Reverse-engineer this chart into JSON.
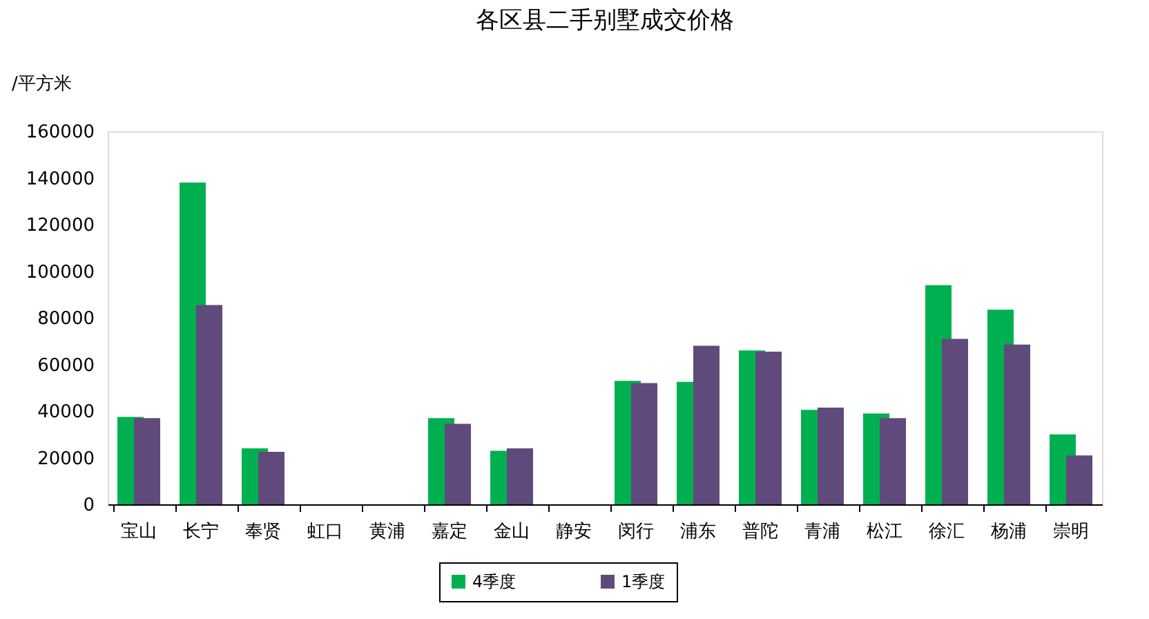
{
  "chart_data": {
    "type": "bar",
    "title": "各区县二手别墅成交价格",
    "ylabel": "/平方米",
    "categories": [
      "宝山",
      "长宁",
      "奉贤",
      "虹口",
      "黄浦",
      "嘉定",
      "金山",
      "静安",
      "闵行",
      "浦东",
      "普陀",
      "青浦",
      "松江",
      "徐汇",
      "杨浦",
      "崇明"
    ],
    "series": [
      {
        "name": "4季度",
        "color": "#00b050",
        "values": [
          37500,
          138000,
          24000,
          null,
          null,
          37000,
          23000,
          null,
          53000,
          52500,
          66000,
          40500,
          39000,
          94000,
          83500,
          30000
        ]
      },
      {
        "name": "1季度",
        "color": "#604a7b",
        "values": [
          37000,
          85500,
          22500,
          null,
          null,
          34500,
          24000,
          null,
          52000,
          68000,
          65500,
          41500,
          37000,
          71000,
          68500,
          21000
        ]
      }
    ],
    "ylim": [
      0,
      160000
    ],
    "yticks": [
      0,
      20000,
      40000,
      60000,
      80000,
      100000,
      120000,
      140000,
      160000
    ],
    "grid": false,
    "legend": "bottom"
  }
}
